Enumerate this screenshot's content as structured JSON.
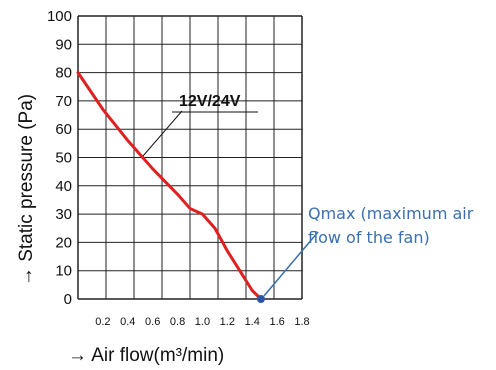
{
  "chart_data": {
    "type": "line",
    "title": "",
    "xlabel": "→  Air flow(m³/min)",
    "ylabel": "→  Static pressure (Pa)",
    "xlim": [
      0,
      1.8
    ],
    "ylim": [
      0,
      100
    ],
    "x_ticks": [
      "0.2",
      "0.4",
      "0.6",
      "0.8",
      "1.0",
      "1.2",
      "1.4",
      "1.6",
      "1.8"
    ],
    "y_ticks": [
      "0",
      "10",
      "20",
      "30",
      "40",
      "50",
      "60",
      "70",
      "80",
      "90",
      "100"
    ],
    "grid": true,
    "series": [
      {
        "name": "12V/24V",
        "color": "#e02020",
        "x": [
          0,
          0.2,
          0.4,
          0.6,
          0.8,
          0.9,
          1.0,
          1.1,
          1.2,
          1.3,
          1.4,
          1.47
        ],
        "y": [
          80,
          67,
          56,
          46,
          37,
          32,
          30,
          25,
          17,
          10,
          3,
          0
        ]
      }
    ],
    "annotations": [
      {
        "text_lines": [
          "Qmax (maximum air",
          "flow of the fan)"
        ],
        "target": {
          "x": 1.47,
          "y": 0
        },
        "color": "#3a6fb0"
      }
    ]
  }
}
